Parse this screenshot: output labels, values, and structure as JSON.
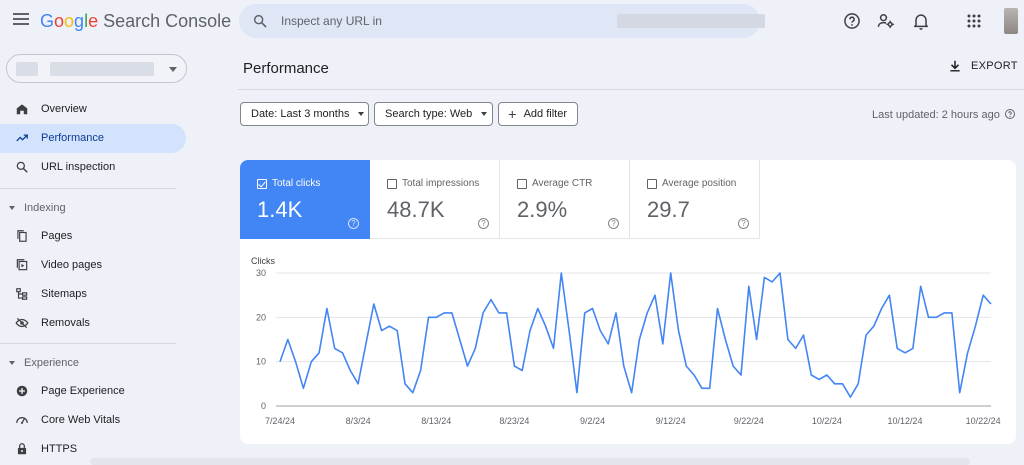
{
  "app": {
    "brand_letters": [
      {
        "ch": "G",
        "color": "#4285f4"
      },
      {
        "ch": "o",
        "color": "#ea4335"
      },
      {
        "ch": "o",
        "color": "#fbbc05"
      },
      {
        "ch": "g",
        "color": "#4285f4"
      },
      {
        "ch": "l",
        "color": "#34a853"
      },
      {
        "ch": "e",
        "color": "#ea4335"
      }
    ],
    "product": "Search Console"
  },
  "search": {
    "placeholder": "Inspect any URL in"
  },
  "topbar_icons": [
    "menu-icon",
    "search-icon",
    "help-icon",
    "manage-users-icon",
    "notifications-icon",
    "apps-grid-icon",
    "account-avatar"
  ],
  "sidebar": {
    "items": [
      {
        "label": "Overview",
        "icon": "home-icon",
        "active": false
      },
      {
        "label": "Performance",
        "icon": "trending-up-icon",
        "active": true
      },
      {
        "label": "URL inspection",
        "icon": "search-icon",
        "active": false
      }
    ],
    "sections": [
      {
        "label": "Indexing",
        "items": [
          {
            "label": "Pages",
            "icon": "pages-icon"
          },
          {
            "label": "Video pages",
            "icon": "video-pages-icon"
          },
          {
            "label": "Sitemaps",
            "icon": "sitemap-icon"
          },
          {
            "label": "Removals",
            "icon": "removals-icon"
          }
        ]
      },
      {
        "label": "Experience",
        "items": [
          {
            "label": "Page Experience",
            "icon": "page-experience-icon"
          },
          {
            "label": "Core Web Vitals",
            "icon": "speed-gauge-icon"
          },
          {
            "label": "HTTPS",
            "icon": "lock-icon"
          }
        ]
      }
    ]
  },
  "main": {
    "title": "Performance",
    "export_label": "EXPORT",
    "filters": {
      "date": "Date: Last 3 months",
      "search_type": "Search type: Web",
      "add_filter": "Add filter"
    },
    "last_updated": "Last updated: 2 hours ago"
  },
  "metrics": [
    {
      "label": "Total clicks",
      "value": "1.4K",
      "selected": true
    },
    {
      "label": "Total impressions",
      "value": "48.7K",
      "selected": false
    },
    {
      "label": "Average CTR",
      "value": "2.9%",
      "selected": false
    },
    {
      "label": "Average position",
      "value": "29.7",
      "selected": false
    }
  ],
  "colors": {
    "accent": "#4285f4",
    "active_nav_bg": "#d3e3fd",
    "page_bg": "#eef1f8"
  },
  "chart_data": {
    "type": "line",
    "ylabel": "Clicks",
    "ylim": [
      0,
      30
    ],
    "yticks": [
      0,
      10,
      20,
      30
    ],
    "grid": true,
    "x_start": "2024-07-24",
    "xticks": [
      "7/24/24",
      "8/3/24",
      "8/13/24",
      "8/23/24",
      "9/2/24",
      "9/12/24",
      "9/22/24",
      "10/2/24",
      "10/12/24",
      "10/22/24"
    ],
    "series": [
      {
        "color": "#4285f4",
        "values": [
          10,
          15,
          10,
          4,
          10,
          12,
          22,
          13,
          12,
          8,
          5,
          14,
          23,
          17,
          18,
          17,
          5,
          3,
          8,
          20,
          20,
          21,
          21,
          15,
          9,
          13,
          21,
          24,
          21,
          21,
          9,
          8,
          17,
          22,
          18,
          13,
          30,
          17,
          3,
          21,
          22,
          17,
          14,
          21,
          9,
          3,
          15,
          21,
          25,
          14,
          30,
          17,
          9,
          7,
          4,
          4,
          22,
          15,
          9,
          7,
          27,
          15,
          29,
          28,
          30,
          15,
          13,
          16,
          7,
          6,
          7,
          5,
          5,
          2,
          5,
          16,
          18,
          22,
          25,
          13,
          12,
          13,
          27,
          20,
          20,
          21,
          21,
          3,
          12,
          18,
          25,
          23
        ]
      }
    ]
  }
}
